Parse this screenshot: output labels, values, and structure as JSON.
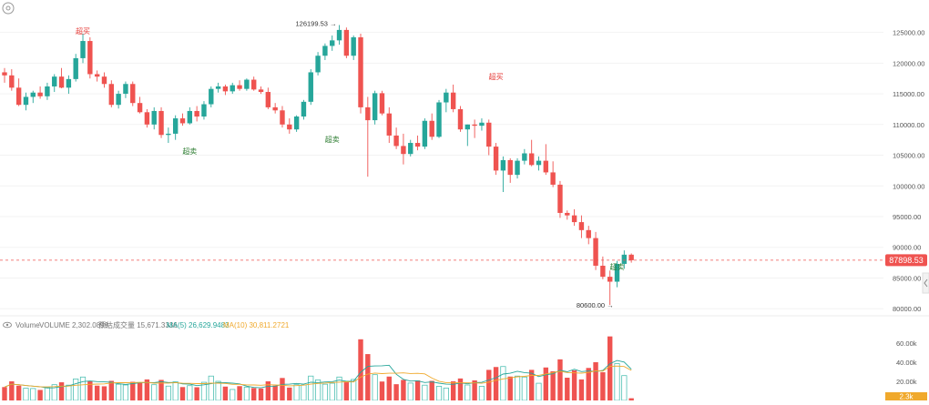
{
  "toolbar": {
    "settings_icon": "gear-icon",
    "collapse_icon": "chevron-left-icon"
  },
  "colors": {
    "up": "#26a69a",
    "down": "#ef5350",
    "up_vol": "#4fc0b3",
    "down_vol": "#ef5350",
    "ma5": "#26a69a",
    "ma10": "#f0a92c",
    "price_label_bg": "#ef5350",
    "annotation_red": "#e53935",
    "annotation_green": "#2e7d32"
  },
  "chart_data": {
    "type": "candlestick",
    "price_axis": {
      "ticks": [
        "125000.00",
        "120000.00",
        "115000.00",
        "110000.00",
        "105000.00",
        "100000.00",
        "95000.00",
        "90000.00",
        "85000.00",
        "80000.00"
      ],
      "tick_values": [
        125000,
        120000,
        115000,
        110000,
        105000,
        100000,
        95000,
        90000,
        85000,
        80000
      ],
      "current_price_label": "87898.53",
      "current_price": 87898.53
    },
    "volume_axis": {
      "ticks": [
        "60.00k",
        "40.00k",
        "20.00k"
      ],
      "tick_values": [
        60000,
        40000,
        20000
      ],
      "current_volume_label": "2.3k"
    },
    "volume_header": {
      "toggle_icon": "eye-icon",
      "label": "Volume",
      "volume_text": "VOLUME 2,302.0899",
      "estimate_text": "预估成交量 15,671.3336",
      "ma5_text": "MA(5) 26,629.9483",
      "ma10_text": "MA(10) 30,811.2721"
    },
    "annotations": {
      "high_label": "126199.53 →",
      "low_label": "80600.00 →",
      "overbought_text": "超买",
      "oversold_text": "超卖"
    },
    "high_value": 126199.53,
    "low_value": 80600.0,
    "ohlc": [
      [
        118500,
        119200,
        116800,
        118000
      ],
      [
        118000,
        119000,
        115500,
        116000
      ],
      [
        116000,
        117500,
        113000,
        113200
      ],
      [
        113200,
        115200,
        112300,
        114500
      ],
      [
        114500,
        115500,
        113500,
        115200
      ],
      [
        115200,
        116200,
        114200,
        114600
      ],
      [
        114600,
        116800,
        114000,
        116200
      ],
      [
        116200,
        118200,
        115300,
        117800
      ],
      [
        117800,
        119200,
        115900,
        116000
      ],
      [
        116000,
        118000,
        115000,
        117400
      ],
      [
        117400,
        121500,
        117000,
        120800
      ],
      [
        120800,
        124800,
        120000,
        123600
      ],
      [
        123600,
        124200,
        117500,
        118200
      ],
      [
        118200,
        118800,
        117000,
        117800
      ],
      [
        117800,
        118500,
        116000,
        116600
      ],
      [
        116600,
        117200,
        112800,
        113200
      ],
      [
        113200,
        115500,
        112600,
        115000
      ],
      [
        115000,
        117000,
        114300,
        116600
      ],
      [
        116600,
        117000,
        113000,
        113500
      ],
      [
        113500,
        114500,
        111800,
        112000
      ],
      [
        112000,
        112500,
        109500,
        110000
      ],
      [
        110000,
        112800,
        109200,
        112200
      ],
      [
        112200,
        112800,
        107800,
        108300
      ],
      [
        108300,
        109500,
        107000,
        108500
      ],
      [
        108500,
        111500,
        107500,
        111000
      ],
      [
        111000,
        111800,
        109800,
        110200
      ],
      [
        110200,
        112800,
        110000,
        112200
      ],
      [
        112200,
        113000,
        110500,
        111300
      ],
      [
        111300,
        113800,
        110800,
        113300
      ],
      [
        113300,
        116200,
        112800,
        115800
      ],
      [
        115800,
        116800,
        115200,
        116200
      ],
      [
        116200,
        116500,
        114800,
        115400
      ],
      [
        115400,
        116800,
        115000,
        116400
      ],
      [
        116400,
        117200,
        115500,
        115800
      ],
      [
        115800,
        117500,
        115500,
        117300
      ],
      [
        117300,
        117800,
        115500,
        115700
      ],
      [
        115700,
        116200,
        115000,
        115300
      ],
      [
        115300,
        116000,
        112500,
        112800
      ],
      [
        112800,
        113500,
        111800,
        112300
      ],
      [
        112300,
        113000,
        109500,
        110000
      ],
      [
        110000,
        111000,
        108500,
        109200
      ],
      [
        109200,
        111500,
        108800,
        111300
      ],
      [
        111300,
        114000,
        110800,
        113700
      ],
      [
        113700,
        119000,
        113200,
        118500
      ],
      [
        118500,
        121800,
        118000,
        121200
      ],
      [
        121200,
        123200,
        120500,
        122800
      ],
      [
        122800,
        124500,
        122000,
        123700
      ],
      [
        123700,
        126199.53,
        123000,
        125400
      ],
      [
        125400,
        125800,
        120800,
        121200
      ],
      [
        121200,
        124500,
        120500,
        124200
      ],
      [
        124200,
        124800,
        111800,
        112800
      ],
      [
        112800,
        114500,
        101500,
        110700
      ],
      [
        110700,
        115500,
        110000,
        115100
      ],
      [
        115100,
        115500,
        111500,
        111800
      ],
      [
        111800,
        112800,
        107000,
        108200
      ],
      [
        108200,
        109500,
        106000,
        106500
      ],
      [
        106500,
        108500,
        103500,
        105200
      ],
      [
        105200,
        107500,
        104800,
        107000
      ],
      [
        107000,
        108200,
        105800,
        106400
      ],
      [
        106400,
        111000,
        106000,
        110600
      ],
      [
        110600,
        111800,
        107500,
        108000
      ],
      [
        108000,
        114000,
        107800,
        113600
      ],
      [
        113600,
        115800,
        112000,
        115200
      ],
      [
        115200,
        116500,
        112000,
        112500
      ],
      [
        112500,
        113000,
        108800,
        109200
      ],
      [
        109200,
        110000,
        106500,
        110000
      ],
      [
        110000,
        110800,
        107800,
        109800
      ],
      [
        109800,
        111000,
        109000,
        110300
      ],
      [
        110300,
        110800,
        105000,
        106400
      ],
      [
        106400,
        107000,
        101800,
        102500
      ],
      [
        102500,
        104800,
        99000,
        104200
      ],
      [
        104200,
        104500,
        100500,
        101800
      ],
      [
        101800,
        104500,
        101200,
        104100
      ],
      [
        104100,
        106000,
        103500,
        105300
      ],
      [
        105300,
        107500,
        103200,
        103400
      ],
      [
        103400,
        104800,
        102500,
        104100
      ],
      [
        104100,
        106800,
        101800,
        102200
      ],
      [
        102200,
        104000,
        99800,
        100200
      ],
      [
        100200,
        100800,
        94800,
        95600
      ],
      [
        95600,
        96000,
        94500,
        95200
      ],
      [
        95200,
        96200,
        93500,
        94100
      ],
      [
        94100,
        95200,
        91500,
        92800
      ],
      [
        92800,
        93500,
        90500,
        91500
      ],
      [
        91500,
        92500,
        86300,
        87000
      ],
      [
        87000,
        88500,
        84800,
        85200
      ],
      [
        85200,
        86200,
        80600.0,
        84400
      ],
      [
        84400,
        87800,
        83500,
        87300
      ],
      [
        87300,
        89500,
        86500,
        88800
      ],
      [
        88800,
        89000,
        87500,
        87898.53
      ]
    ],
    "volume": [
      14000,
      20000,
      15500,
      12800,
      12500,
      11000,
      13500,
      16500,
      19000,
      16000,
      22500,
      24500,
      20000,
      15500,
      14800,
      20500,
      17000,
      16200,
      19500,
      19000,
      22000,
      16500,
      21500,
      15000,
      19500,
      14000,
      15500,
      13800,
      19000,
      25500,
      20000,
      14500,
      11500,
      15000,
      14000,
      13000,
      12500,
      20000,
      15500,
      23500,
      13500,
      16500,
      16200,
      25500,
      21500,
      17000,
      18000,
      24500,
      19000,
      22000,
      64000,
      48500,
      27000,
      19800,
      25000,
      17000,
      21500,
      18200,
      21000,
      16000,
      20500,
      14800,
      13000,
      20000,
      23000,
      16200,
      21000,
      14800,
      32000,
      35000,
      35500,
      25000,
      25500,
      24500,
      32000,
      18000,
      34500,
      30500,
      43000,
      23800,
      31500,
      22000,
      34000,
      40000,
      29500,
      67000,
      38500,
      26000,
      2302
    ]
  }
}
